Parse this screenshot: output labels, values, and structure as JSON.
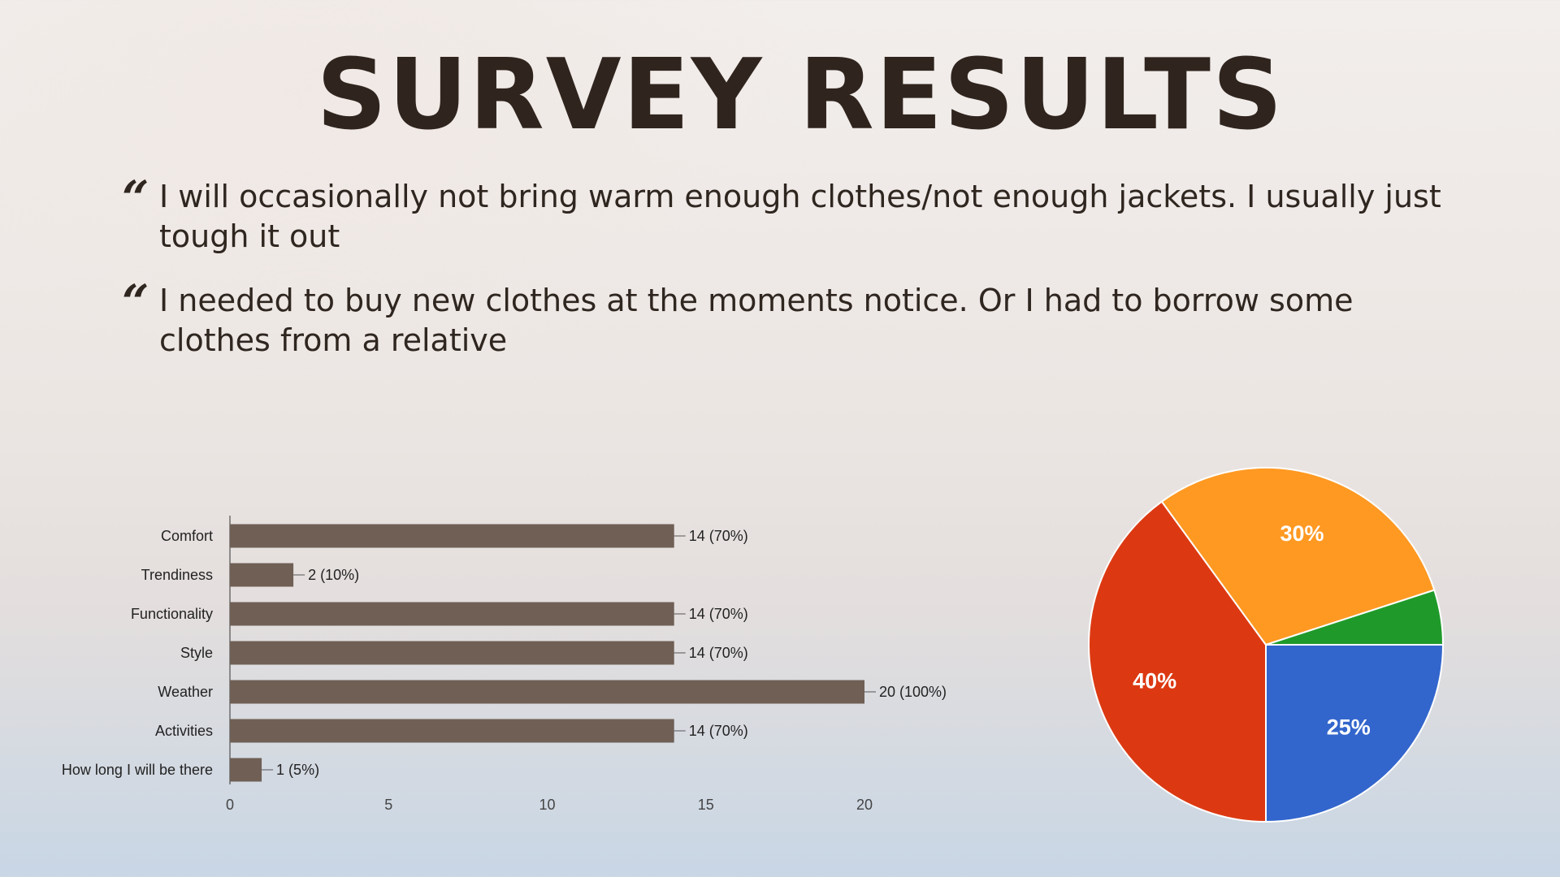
{
  "slide": {
    "title": "SURVEY RESULTS",
    "quote_mark": "“",
    "quotes": [
      "I will occasionally not bring warm enough clothes/not enough jackets. I usually just tough it out",
      "I  needed to buy new clothes at the moments notice. Or I had to borrow some clothes from a relative"
    ]
  },
  "chart_data": [
    {
      "type": "bar",
      "orientation": "horizontal",
      "title": "",
      "xlabel": "",
      "ylabel": "",
      "categories": [
        "Comfort",
        "Trendiness",
        "Functionality",
        "Style",
        "Weather",
        "Activities",
        "How long I will be there"
      ],
      "values": [
        14,
        2,
        14,
        14,
        20,
        14,
        1
      ],
      "data_labels": [
        "14 (70%)",
        "2 (10%)",
        "14 (70%)",
        "14 (70%)",
        "20 (100%)",
        "14 (70%)",
        "1 (5%)"
      ],
      "xlim": [
        0,
        20
      ],
      "xticks": [
        0,
        5,
        10,
        15,
        20
      ],
      "bar_color": "#6f5f55",
      "grid": false
    },
    {
      "type": "pie",
      "title": "",
      "slices": [
        {
          "value": 25,
          "label": "25%",
          "color": "#3366cc"
        },
        {
          "value": 40,
          "label": "40%",
          "color": "#dc3912"
        },
        {
          "value": 30,
          "label": "30%",
          "color": "#ff9922"
        },
        {
          "value": 5,
          "label": "",
          "color": "#1f9a2a"
        }
      ],
      "start": "3 o'clock",
      "direction": "clockwise",
      "legend": "none"
    }
  ]
}
